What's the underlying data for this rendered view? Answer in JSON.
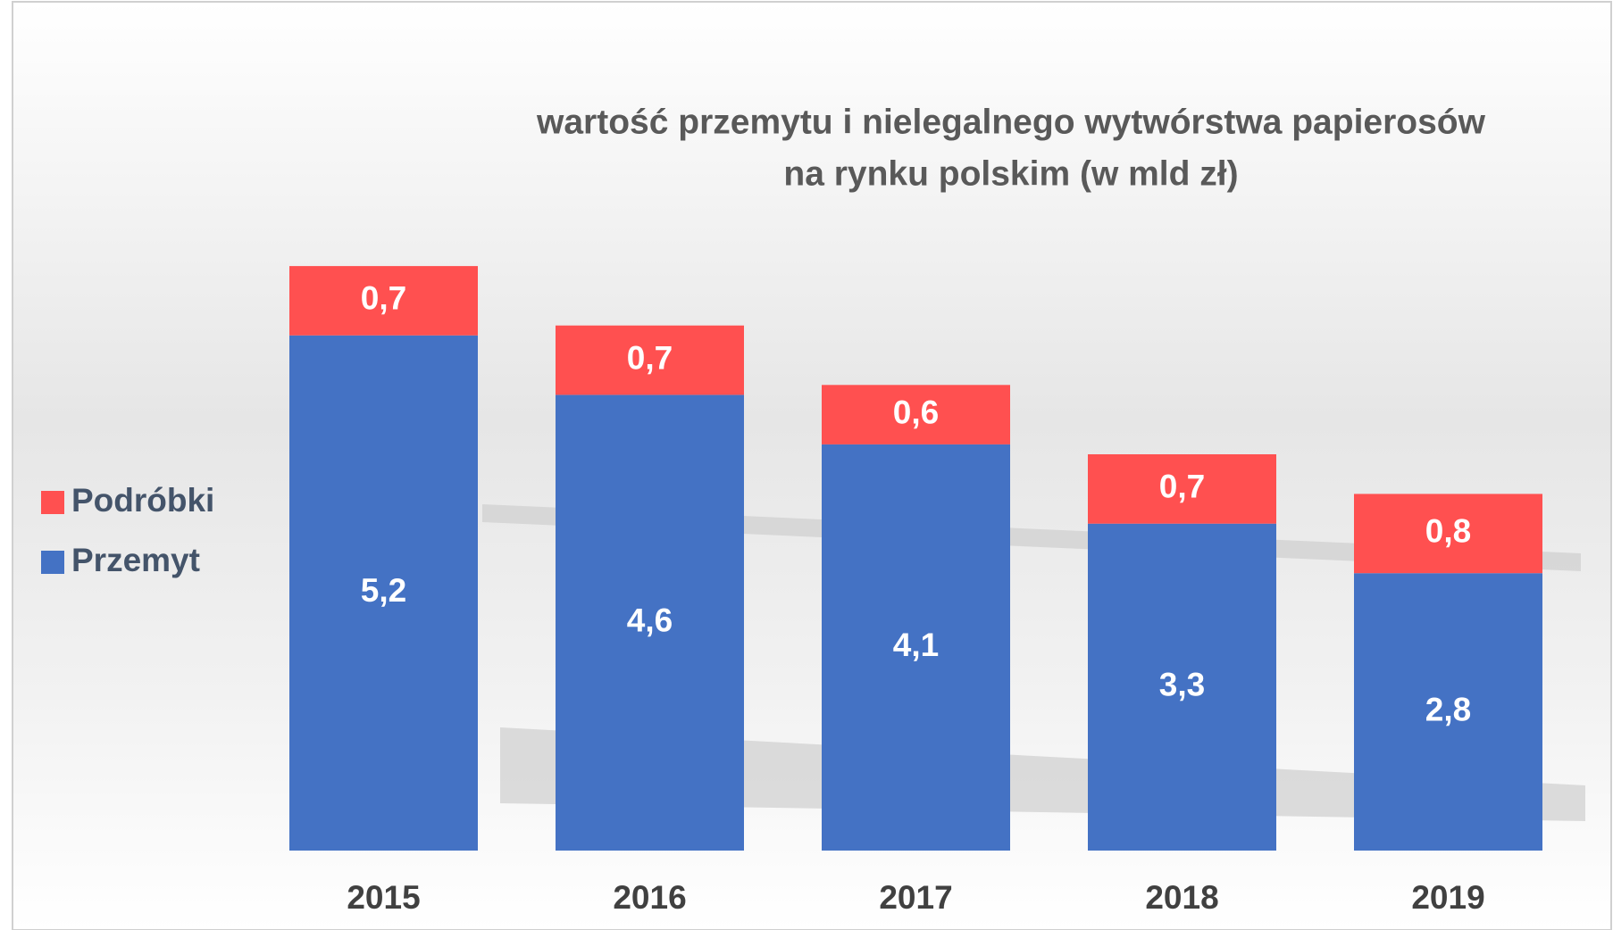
{
  "chart_data": {
    "type": "stacked_bar",
    "title": [
      "wartość przemytu i nielegalnego wytwórstwa papierosów",
      "na rynku polskim (w mld zł)"
    ],
    "categories": [
      "2015",
      "2016",
      "2017",
      "2018",
      "2019"
    ],
    "series": [
      {
        "name": "Przemyt",
        "color": "#4472c4",
        "values": [
          5.2,
          4.6,
          4.1,
          3.3,
          2.8
        ],
        "value_labels": [
          "5,2",
          "4,6",
          "4,1",
          "3,3",
          "2,8"
        ]
      },
      {
        "name": "Podróbki",
        "color": "#ff5050",
        "values": [
          0.7,
          0.7,
          0.6,
          0.7,
          0.8
        ],
        "value_labels": [
          "0,7",
          "0,7",
          "0,6",
          "0,7",
          "0,8"
        ]
      }
    ]
  }
}
